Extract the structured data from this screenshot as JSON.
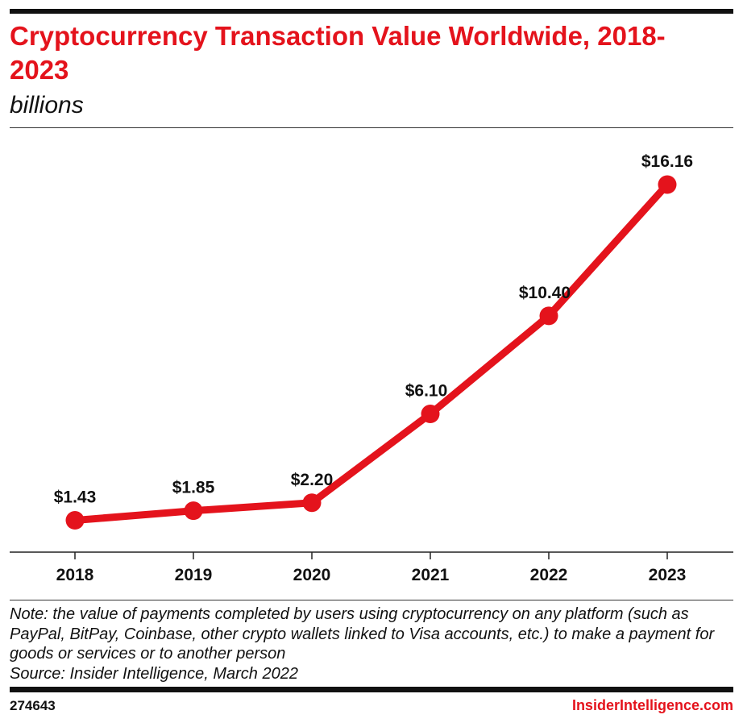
{
  "title": "Cryptocurrency Transaction Value Worldwide, 2018-2023",
  "subtitle": "billions",
  "note": "Note: the value of payments completed by users using cryptocurrency on any platform (such as PayPal, BitPay, Coinbase, other crypto wallets linked to Visa accounts, etc.) to make a payment for goods or services or to another person",
  "source": "Source: Insider Intelligence, March 2022",
  "chart_id": "274643",
  "brand": "InsiderIntelligence.com",
  "colors": {
    "accent": "#e4131c",
    "text": "#111111"
  },
  "chart_data": {
    "type": "line",
    "categories": [
      "2018",
      "2019",
      "2020",
      "2021",
      "2022",
      "2023"
    ],
    "values": [
      1.43,
      1.85,
      2.2,
      6.1,
      10.4,
      16.16
    ],
    "data_labels": [
      "$1.43",
      "$1.85",
      "$2.20",
      "$6.10",
      "$10.40",
      "$16.16"
    ],
    "ylim": [
      0,
      18.6
    ],
    "grid": false,
    "legend": "none"
  }
}
